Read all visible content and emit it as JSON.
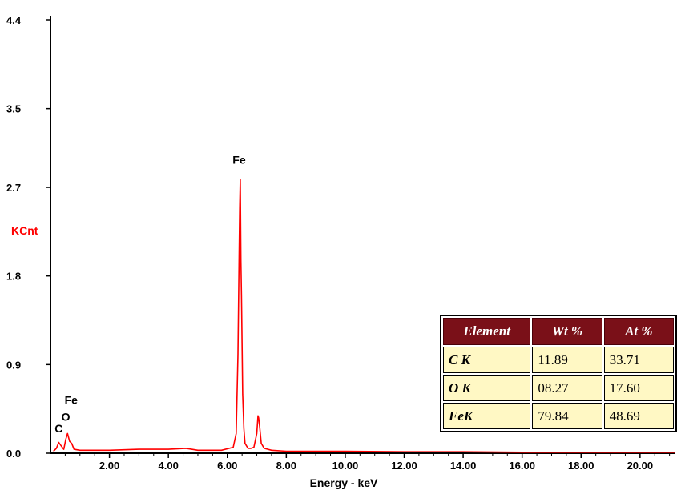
{
  "chart_data": {
    "type": "line",
    "xlabel": "Energy - keV",
    "ylabel": "KCnt",
    "xlim": [
      0.0,
      21.2
    ],
    "ylim": [
      0.0,
      4.4
    ],
    "x_ticks": [
      "2.00",
      "4.00",
      "6.00",
      "8.00",
      "10.00",
      "12.00",
      "14.00",
      "16.00",
      "18.00",
      "20.00"
    ],
    "y_ticks": [
      "0.0",
      "0.9",
      "1.8",
      "2.7",
      "3.5",
      "4.4"
    ],
    "series": [
      {
        "color": "#ff0000",
        "x": [
          0.1,
          0.2,
          0.28,
          0.35,
          0.45,
          0.52,
          0.58,
          0.65,
          0.72,
          0.8,
          1.0,
          1.5,
          2.0,
          3.0,
          4.0,
          4.6,
          5.0,
          5.8,
          6.2,
          6.3,
          6.36,
          6.4,
          6.42,
          6.44,
          6.46,
          6.48,
          6.52,
          6.56,
          6.6,
          6.7,
          6.8,
          6.9,
          7.0,
          7.04,
          7.06,
          7.1,
          7.15,
          7.25,
          7.5,
          8.0,
          10.0,
          12.0,
          14.0,
          16.0,
          18.0,
          20.0,
          21.2
        ],
        "y": [
          0.02,
          0.05,
          0.11,
          0.08,
          0.04,
          0.14,
          0.2,
          0.12,
          0.1,
          0.04,
          0.03,
          0.03,
          0.03,
          0.04,
          0.04,
          0.05,
          0.03,
          0.03,
          0.06,
          0.2,
          1.0,
          2.05,
          2.5,
          2.78,
          1.95,
          1.6,
          0.6,
          0.25,
          0.1,
          0.05,
          0.05,
          0.06,
          0.2,
          0.38,
          0.36,
          0.26,
          0.1,
          0.05,
          0.03,
          0.02,
          0.02,
          0.015,
          0.015,
          0.01,
          0.01,
          0.01,
          0.01
        ]
      }
    ],
    "annotations": [
      {
        "text": "Fe",
        "x": 6.4,
        "y": 2.94
      },
      {
        "text": "Fe",
        "x": 0.7,
        "y": 0.5
      },
      {
        "text": "O",
        "x": 0.52,
        "y": 0.33
      },
      {
        "text": "C",
        "x": 0.28,
        "y": 0.21
      }
    ]
  },
  "table": {
    "headers": [
      "Element",
      "Wt %",
      "At %"
    ],
    "rows": [
      [
        "C K",
        "11.89",
        "33.71"
      ],
      [
        "O K",
        "08.27",
        "17.60"
      ],
      [
        "FeK",
        "79.84",
        "48.69"
      ]
    ]
  }
}
